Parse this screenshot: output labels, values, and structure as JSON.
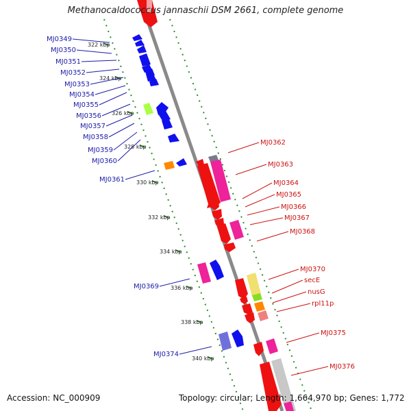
{
  "header": {
    "title": "Methanocaldococcus jannaschii DSM 2661, complete genome"
  },
  "footer": {
    "accession": "Accession: NC_000909",
    "summary": "Topology: circular; Length: 1,664,970 bp; Genes: 1,772"
  },
  "colors": {
    "backbone": "#8a8a8a",
    "ticks": "#2a8a2a",
    "left_strand": "#1010ee",
    "right_strand": "#ee1111",
    "magenta": "#ee2299",
    "blue_label": "#1a1aa8",
    "red_label": "#cc1111"
  },
  "kbp_ticks": [
    "322 kbp",
    "324 kbp",
    "326 kbp",
    "328 kbp",
    "330 kbp",
    "332 kbp",
    "334 kbp",
    "336 kbp",
    "338 kbp",
    "340 kbp"
  ],
  "left_labels": [
    "MJ0349",
    "MJ0350",
    "MJ0351",
    "MJ0352",
    "MJ0353",
    "MJ0354",
    "MJ0355",
    "MJ0356",
    "MJ0357",
    "MJ0358",
    "MJ0359",
    "MJ0360",
    "MJ0361",
    "MJ0369",
    "MJ0374"
  ],
  "right_labels": [
    "MJ0362",
    "MJ0363",
    "MJ0364",
    "MJ0365",
    "MJ0366",
    "MJ0367",
    "MJ0368",
    "MJ0370",
    "secE",
    "nusG",
    "rpl11p",
    "MJ0375",
    "MJ0376"
  ]
}
